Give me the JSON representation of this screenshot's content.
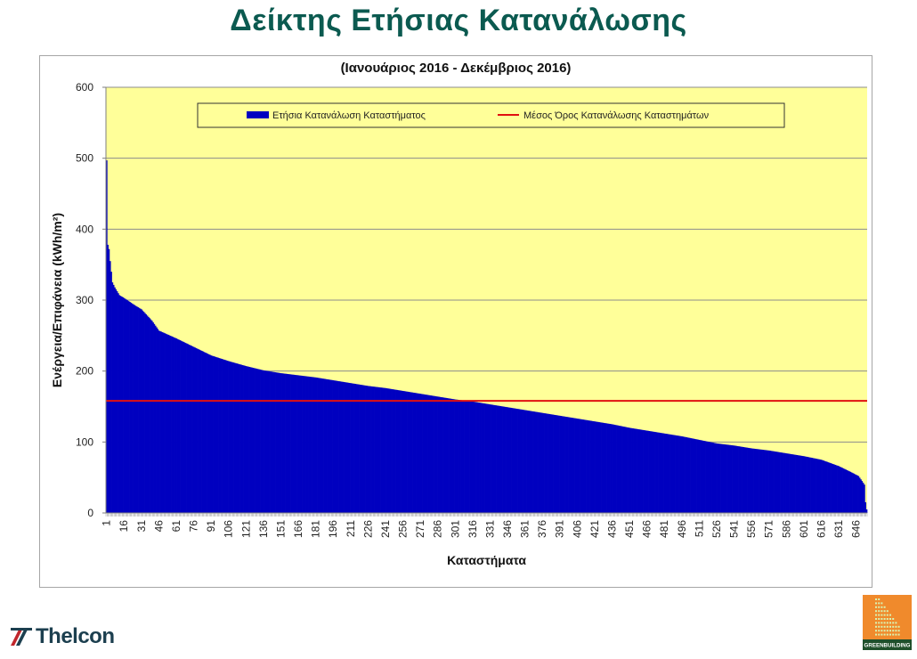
{
  "page": {
    "title": "Δείκτης Ετήσιας Κατανάλωσης"
  },
  "chart_data": {
    "type": "bar",
    "subtitle": "(Ιανουάριος 2016 -  Δεκέμβριος 2016)",
    "xlabel": "Καταστήματα",
    "ylabel": "Ενέργεια/Επιφάνεια (kWh/m²)",
    "ylim": [
      0,
      600
    ],
    "yticks": [
      0,
      100,
      200,
      300,
      400,
      500,
      600
    ],
    "x_count": 655,
    "x_tick_labels": [
      "1",
      "16",
      "31",
      "46",
      "61",
      "76",
      "91",
      "106",
      "121",
      "136",
      "151",
      "166",
      "181",
      "196",
      "211",
      "226",
      "241",
      "256",
      "271",
      "286",
      "301",
      "316",
      "331",
      "346",
      "361",
      "376",
      "391",
      "406",
      "421",
      "436",
      "451",
      "466",
      "481",
      "496",
      "511",
      "526",
      "541",
      "556",
      "571",
      "586",
      "601",
      "616",
      "631",
      "646"
    ],
    "grid": true,
    "legend_position": "top",
    "colors": {
      "plot_background": "#ffff99",
      "bars": "#0000c0",
      "mean_line": "#e01010"
    },
    "series": [
      {
        "name": "Ετήσια Κατανάλωση Καταστήματος",
        "kind": "bar",
        "profile": [
          [
            1,
            497
          ],
          [
            2,
            378
          ],
          [
            3,
            372
          ],
          [
            4,
            355
          ],
          [
            5,
            340
          ],
          [
            6,
            325
          ],
          [
            8,
            318
          ],
          [
            12,
            307
          ],
          [
            16,
            303
          ],
          [
            25,
            293
          ],
          [
            31,
            287
          ],
          [
            40,
            271
          ],
          [
            46,
            257
          ],
          [
            61,
            246
          ],
          [
            76,
            234
          ],
          [
            91,
            222
          ],
          [
            106,
            214
          ],
          [
            121,
            207
          ],
          [
            136,
            201
          ],
          [
            151,
            197
          ],
          [
            166,
            194
          ],
          [
            181,
            191
          ],
          [
            196,
            187
          ],
          [
            211,
            183
          ],
          [
            226,
            179
          ],
          [
            241,
            176
          ],
          [
            256,
            172
          ],
          [
            271,
            168
          ],
          [
            286,
            164
          ],
          [
            301,
            160
          ],
          [
            316,
            157
          ],
          [
            331,
            153
          ],
          [
            346,
            149
          ],
          [
            361,
            145
          ],
          [
            376,
            141
          ],
          [
            391,
            137
          ],
          [
            406,
            133
          ],
          [
            421,
            129
          ],
          [
            436,
            125
          ],
          [
            451,
            120
          ],
          [
            466,
            116
          ],
          [
            481,
            112
          ],
          [
            496,
            108
          ],
          [
            511,
            103
          ],
          [
            526,
            98
          ],
          [
            541,
            95
          ],
          [
            556,
            91
          ],
          [
            571,
            88
          ],
          [
            586,
            84
          ],
          [
            601,
            80
          ],
          [
            616,
            75
          ],
          [
            631,
            66
          ],
          [
            641,
            58
          ],
          [
            648,
            52
          ],
          [
            651,
            45
          ],
          [
            653,
            40
          ],
          [
            654,
            15
          ],
          [
            655,
            5
          ]
        ]
      },
      {
        "name": "Μέσος Όρος Κατανάλωσης Καταστημάτων",
        "kind": "line",
        "value": 158
      }
    ]
  },
  "logos": {
    "left_text": "Thelcon",
    "right_text": "GREENBUILDING"
  }
}
